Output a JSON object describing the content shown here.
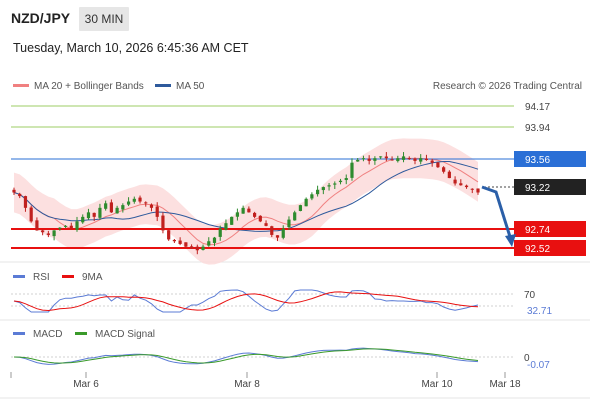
{
  "header": {
    "pair": "NZD/JPY",
    "timeframe": "30 MIN",
    "datetime": "Tuesday, March 10, 2026 6:45:36 AM CET"
  },
  "legend": {
    "ma20": "MA 20 + Bollinger Bands",
    "ma50": "MA 50",
    "credit": "Research © 2026 Trading Central"
  },
  "colors": {
    "ma20": "#f08080",
    "ma50": "#2e5a9c",
    "support": "#e81010",
    "resistance": "#2a6fd6",
    "target": "#9ccc65",
    "price": "#222222",
    "arrow": "#2b5fa8"
  },
  "levels": {
    "r2": "94.17",
    "r1": "93.94",
    "pivot": "93.56",
    "last": "93.22",
    "s1": "92.74",
    "s2": "92.52"
  },
  "rsi": {
    "label": "RSI",
    "ma_label": "9MA",
    "level": "70",
    "value": "32.71",
    "value_color": "#5b7bd5"
  },
  "macd": {
    "label": "MACD",
    "signal_label": "MACD Signal",
    "zero": "0",
    "value": "-0.07",
    "value_color": "#5b7bd5"
  },
  "xaxis": {
    "ticks": [
      "Mar 6",
      "Mar 8",
      "Mar 10",
      "Mar 18"
    ]
  },
  "chart_data": {
    "type": "candlestick",
    "series": [
      {
        "name": "MA 20 + Bollinger Bands"
      },
      {
        "name": "MA 50"
      }
    ],
    "closes": [
      93.22,
      93.18,
      93.05,
      92.9,
      92.8,
      92.78,
      92.75,
      92.8,
      92.83,
      92.85,
      92.82,
      92.9,
      92.95,
      93.0,
      92.95,
      93.05,
      93.1,
      93.0,
      93.05,
      93.08,
      93.12,
      93.15,
      93.12,
      93.1,
      93.05,
      92.95,
      92.8,
      92.7,
      92.68,
      92.65,
      92.62,
      92.6,
      92.58,
      92.62,
      92.68,
      92.72,
      92.82,
      92.88,
      92.95,
      93.0,
      93.05,
      93.0,
      92.95,
      92.9,
      92.85,
      92.75,
      92.72,
      92.82,
      92.92,
      93.0,
      93.08,
      93.15,
      93.2,
      93.25,
      93.28,
      93.3,
      93.32,
      93.35,
      93.38,
      93.55,
      93.58,
      93.6,
      93.57,
      93.6,
      93.62,
      93.6,
      93.58,
      93.6,
      93.62,
      93.59,
      93.57,
      93.6,
      93.58,
      93.55,
      93.5,
      93.45,
      93.38,
      93.32,
      93.3,
      93.28,
      93.25,
      93.22
    ],
    "yrange": [
      92.45,
      94.3
    ],
    "rsi_range": [
      20,
      80
    ]
  }
}
